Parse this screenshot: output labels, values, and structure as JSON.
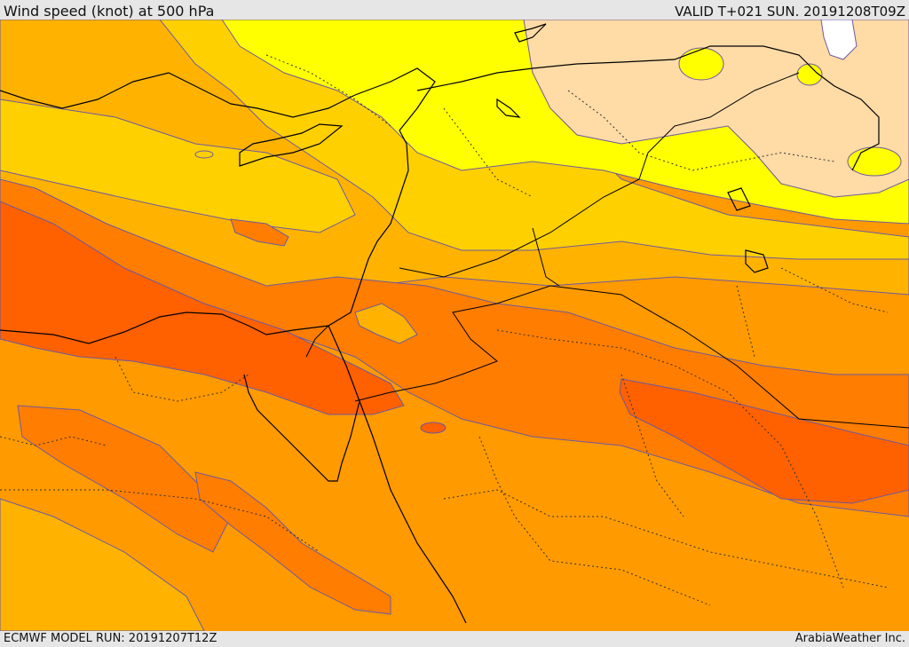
{
  "header": {
    "title": "Wind speed (knot) at 500 hPa",
    "valid": "VALID T+021 SUN. 20191208T09Z"
  },
  "footer": {
    "model_run": "ECMWF MODEL RUN: 20191207T12Z",
    "credit": "ArabiaWeather Inc."
  },
  "colors": {
    "very_dark_orange": "#ff6000",
    "dark_orange": "#ff7d00",
    "orange": "#ff9a00",
    "amber": "#ffb300",
    "gold": "#ffd000",
    "yellow": "#ffff00",
    "peach": "#ffdba6",
    "white": "#ffffff",
    "contour": "#6e5aa0",
    "border": "#000000"
  }
}
